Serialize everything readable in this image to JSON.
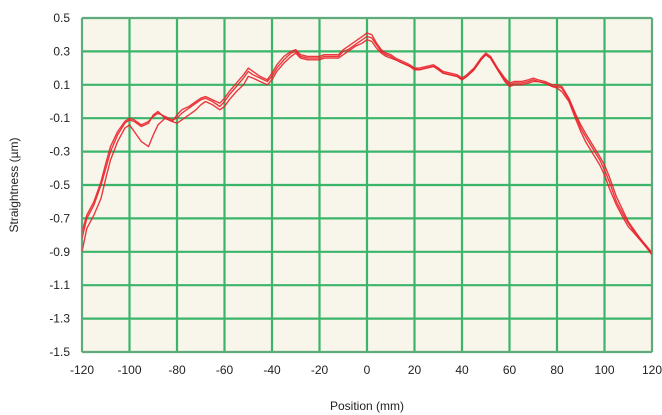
{
  "chart_data": {
    "type": "line",
    "title": "",
    "xlabel": "Position (mm)",
    "ylabel": "Straightness (µm)",
    "xlim": [
      -120,
      120
    ],
    "ylim": [
      -1.5,
      0.5
    ],
    "x_ticks": [
      -120,
      -100,
      -80,
      -60,
      -40,
      -20,
      0,
      20,
      40,
      60,
      80,
      100,
      120
    ],
    "y_ticks": [
      0.5,
      0.3,
      0.1,
      -0.1,
      -0.3,
      -0.5,
      -0.7,
      -0.9,
      -1.1,
      -1.3,
      -1.5
    ],
    "x_tick_labels": [
      "-120",
      "-100",
      "-80",
      "-60",
      "-40",
      "-20",
      "0",
      "20",
      "40",
      "60",
      "80",
      "100",
      "120"
    ],
    "y_tick_labels": [
      "0.5",
      "0.3",
      "0.1",
      "-0.1",
      "-0.3",
      "-0.5",
      "-0.7",
      "-0.9",
      "-1.1",
      "-1.3",
      "-1.5"
    ],
    "grid": true,
    "legend": "none",
    "colors": {
      "plot_background": "#f8f5ea",
      "grid": "#3bb56a",
      "series": "#e8242b"
    },
    "series": [
      {
        "x": [
          -120,
          -118,
          -115,
          -112,
          -110,
          -108,
          -105,
          -102,
          -100,
          -98,
          -95,
          -92,
          -90,
          -88,
          -85,
          -82,
          -80,
          -78,
          -75,
          -72,
          -70,
          -68,
          -65,
          -62,
          -60,
          -58,
          -55,
          -52,
          -50,
          -48,
          -45,
          -42,
          -40,
          -38,
          -35,
          -32,
          -30,
          -28,
          -25,
          -22,
          -20,
          -18,
          -15,
          -12,
          -10,
          -8,
          -5,
          -2,
          0,
          2,
          4,
          6,
          8,
          10,
          12,
          15,
          18,
          20,
          22,
          25,
          28,
          30,
          32,
          35,
          38,
          40,
          42,
          45,
          48,
          50,
          52,
          55,
          58,
          60,
          62,
          65,
          68,
          70,
          72,
          75,
          78,
          80,
          82,
          85,
          88,
          90,
          92,
          95,
          98,
          100,
          102,
          105,
          108,
          110,
          112,
          115,
          118,
          120
        ],
        "values": [
          -0.82,
          -0.7,
          -0.62,
          -0.5,
          -0.4,
          -0.3,
          -0.2,
          -0.13,
          -0.11,
          -0.12,
          -0.15,
          -0.13,
          -0.08,
          -0.06,
          -0.1,
          -0.12,
          -0.08,
          -0.05,
          -0.03,
          0.0,
          0.02,
          0.03,
          0.01,
          -0.01,
          0.02,
          0.06,
          0.11,
          0.16,
          0.2,
          0.18,
          0.15,
          0.13,
          0.17,
          0.22,
          0.27,
          0.3,
          0.31,
          0.28,
          0.27,
          0.27,
          0.27,
          0.28,
          0.28,
          0.28,
          0.31,
          0.33,
          0.36,
          0.39,
          0.41,
          0.4,
          0.35,
          0.31,
          0.29,
          0.28,
          0.26,
          0.24,
          0.22,
          0.2,
          0.2,
          0.21,
          0.22,
          0.2,
          0.18,
          0.17,
          0.16,
          0.14,
          0.16,
          0.2,
          0.26,
          0.29,
          0.27,
          0.2,
          0.14,
          0.11,
          0.12,
          0.12,
          0.13,
          0.14,
          0.13,
          0.12,
          0.1,
          0.1,
          0.09,
          0.02,
          -0.08,
          -0.14,
          -0.19,
          -0.26,
          -0.33,
          -0.38,
          -0.45,
          -0.57,
          -0.66,
          -0.72,
          -0.76,
          -0.82,
          -0.88,
          -0.92
        ]
      },
      {
        "x": [
          -120,
          -118,
          -115,
          -112,
          -110,
          -108,
          -105,
          -102,
          -100,
          -98,
          -95,
          -92,
          -90,
          -88,
          -85,
          -82,
          -80,
          -78,
          -75,
          -72,
          -70,
          -68,
          -65,
          -62,
          -60,
          -58,
          -55,
          -52,
          -50,
          -48,
          -45,
          -42,
          -40,
          -38,
          -35,
          -32,
          -30,
          -28,
          -25,
          -22,
          -20,
          -18,
          -15,
          -12,
          -10,
          -8,
          -5,
          -2,
          0,
          2,
          4,
          6,
          8,
          10,
          12,
          15,
          18,
          20,
          22,
          25,
          28,
          30,
          32,
          35,
          38,
          40,
          42,
          45,
          48,
          50,
          52,
          55,
          58,
          60,
          62,
          65,
          68,
          70,
          72,
          75,
          78,
          80,
          82,
          85,
          88,
          90,
          92,
          95,
          98,
          100,
          102,
          105,
          108,
          110,
          112,
          115,
          118,
          120
        ],
        "values": [
          -0.9,
          -0.76,
          -0.68,
          -0.58,
          -0.46,
          -0.35,
          -0.24,
          -0.16,
          -0.14,
          -0.18,
          -0.24,
          -0.27,
          -0.2,
          -0.14,
          -0.1,
          -0.12,
          -0.13,
          -0.11,
          -0.08,
          -0.05,
          -0.02,
          0.0,
          -0.02,
          -0.05,
          -0.03,
          0.01,
          0.06,
          0.1,
          0.15,
          0.14,
          0.12,
          0.1,
          0.13,
          0.18,
          0.23,
          0.27,
          0.29,
          0.26,
          0.25,
          0.25,
          0.25,
          0.26,
          0.26,
          0.26,
          0.28,
          0.3,
          0.33,
          0.35,
          0.37,
          0.36,
          0.32,
          0.29,
          0.27,
          0.26,
          0.25,
          0.23,
          0.21,
          0.19,
          0.19,
          0.2,
          0.21,
          0.19,
          0.17,
          0.16,
          0.15,
          0.13,
          0.15,
          0.19,
          0.25,
          0.28,
          0.26,
          0.19,
          0.12,
          0.09,
          0.1,
          0.1,
          0.11,
          0.12,
          0.12,
          0.11,
          0.09,
          0.08,
          0.06,
          0.0,
          -0.11,
          -0.18,
          -0.24,
          -0.31,
          -0.38,
          -0.44,
          -0.52,
          -0.62,
          -0.7,
          -0.75,
          -0.78,
          -0.83,
          -0.88,
          -0.9
        ]
      },
      {
        "x": [
          -120,
          -118,
          -115,
          -112,
          -110,
          -108,
          -105,
          -102,
          -100,
          -98,
          -95,
          -92,
          -90,
          -88,
          -85,
          -82,
          -80,
          -78,
          -75,
          -72,
          -70,
          -68,
          -65,
          -62,
          -60,
          -58,
          -55,
          -52,
          -50,
          -48,
          -45,
          -42,
          -40,
          -38,
          -35,
          -32,
          -30,
          -28,
          -25,
          -22,
          -20,
          -18,
          -15,
          -12,
          -10,
          -8,
          -5,
          -2,
          0,
          2,
          4,
          6,
          8,
          10,
          12,
          15,
          18,
          20,
          22,
          25,
          28,
          30,
          32,
          35,
          38,
          40,
          42,
          45,
          48,
          50,
          52,
          55,
          58,
          60,
          62,
          65,
          68,
          70,
          72,
          75,
          78,
          80,
          82,
          85,
          88,
          90,
          92,
          95,
          98,
          100,
          102,
          105,
          108,
          110,
          112,
          115,
          118,
          120
        ],
        "values": [
          -0.78,
          -0.68,
          -0.6,
          -0.48,
          -0.37,
          -0.27,
          -0.18,
          -0.12,
          -0.1,
          -0.11,
          -0.14,
          -0.12,
          -0.09,
          -0.07,
          -0.09,
          -0.11,
          -0.1,
          -0.07,
          -0.04,
          -0.01,
          0.01,
          0.02,
          0.0,
          -0.03,
          0.0,
          0.04,
          0.09,
          0.14,
          0.18,
          0.16,
          0.14,
          0.12,
          0.15,
          0.2,
          0.25,
          0.29,
          0.3,
          0.27,
          0.26,
          0.26,
          0.26,
          0.27,
          0.27,
          0.27,
          0.3,
          0.31,
          0.34,
          0.37,
          0.39,
          0.38,
          0.34,
          0.3,
          0.28,
          0.27,
          0.25,
          0.23,
          0.21,
          0.2,
          0.19,
          0.2,
          0.21,
          0.2,
          0.17,
          0.16,
          0.15,
          0.13,
          0.15,
          0.19,
          0.25,
          0.28,
          0.26,
          0.19,
          0.13,
          0.1,
          0.11,
          0.11,
          0.12,
          0.13,
          0.12,
          0.11,
          0.09,
          0.09,
          0.08,
          0.01,
          -0.09,
          -0.16,
          -0.21,
          -0.28,
          -0.35,
          -0.41,
          -0.48,
          -0.6,
          -0.68,
          -0.73,
          -0.77,
          -0.82,
          -0.87,
          -0.91
        ]
      }
    ]
  }
}
